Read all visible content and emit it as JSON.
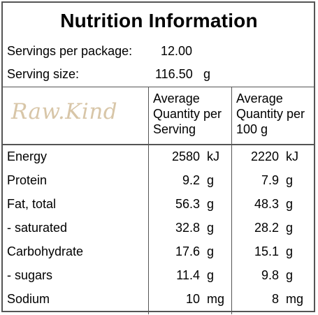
{
  "title": "Nutrition Information",
  "servings_label": "Servings per package:",
  "servings_value": "12.00",
  "serving_size_label": "Serving size:",
  "serving_size_value": "116.50",
  "serving_size_unit": "g",
  "logo_text": "Raw.Kind",
  "col_serving_header": [
    "Average",
    "Quantity per",
    "Serving"
  ],
  "col_100g_header": [
    "Average",
    "Quantity per",
    "100 g"
  ],
  "rows": [
    {
      "name": "Energy",
      "serving": "2580",
      "serving_unit": "kJ",
      "per100": "2220",
      "per100_unit": "kJ"
    },
    {
      "name": "Protein",
      "serving": "9.2",
      "serving_unit": "g",
      "per100": "7.9",
      "per100_unit": "g"
    },
    {
      "name": "Fat, total",
      "serving": "56.3",
      "serving_unit": "g",
      "per100": "48.3",
      "per100_unit": "g"
    },
    {
      "name": "- saturated",
      "serving": "32.8",
      "serving_unit": "g",
      "per100": "28.2",
      "per100_unit": "g"
    },
    {
      "name": "Carbohydrate",
      "serving": "17.6",
      "serving_unit": "g",
      "per100": "15.1",
      "per100_unit": "g"
    },
    {
      "name": "- sugars",
      "serving": "11.4",
      "serving_unit": "g",
      "per100": "9.8",
      "per100_unit": "g"
    },
    {
      "name": "Sodium",
      "serving": "10",
      "serving_unit": "mg",
      "per100": "8",
      "per100_unit": "mg"
    }
  ],
  "colors": {
    "border": "#555555",
    "logo": "#d8c6a8"
  }
}
